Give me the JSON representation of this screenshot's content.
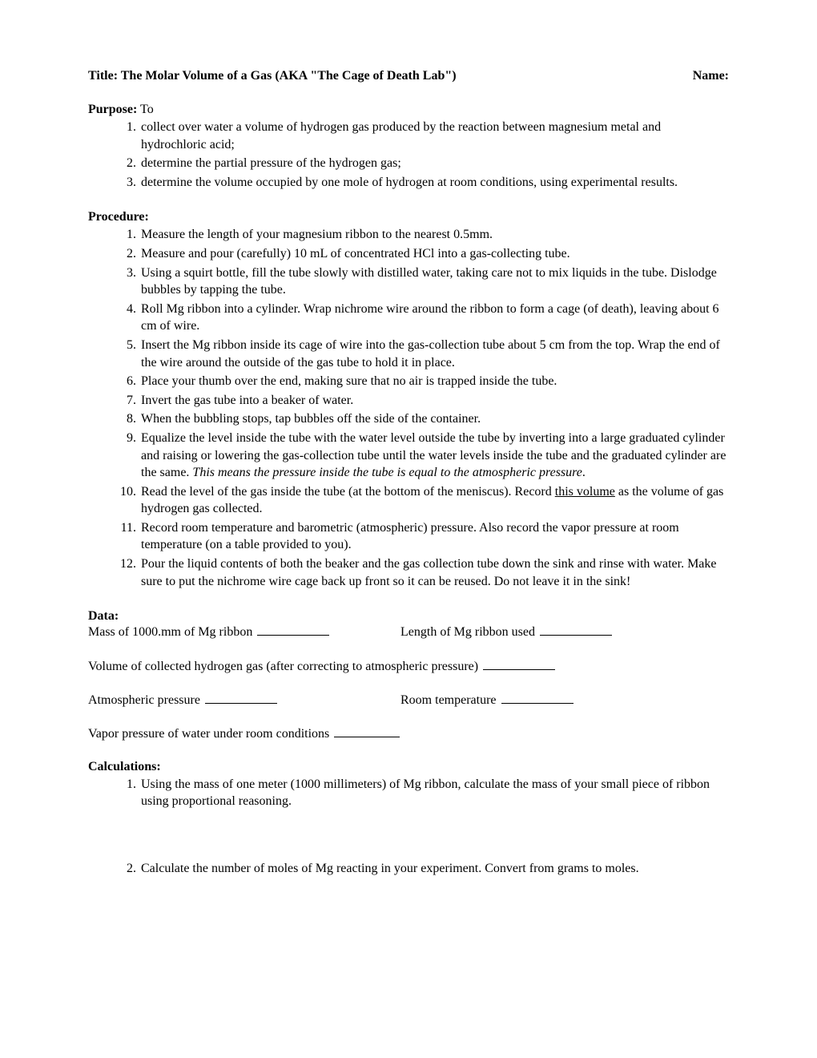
{
  "title": "Title: The Molar Volume of a Gas (AKA \"The Cage of Death Lab\")",
  "name_label": "Name:",
  "purpose": {
    "heading": "Purpose:",
    "lead": " To",
    "items": [
      "collect over water a volume of hydrogen gas produced by the reaction between magnesium metal and hydrochloric acid;",
      "determine the partial pressure of the hydrogen gas;",
      "determine the volume occupied by one mole of hydrogen at room conditions, using experimental results."
    ]
  },
  "procedure": {
    "heading": "Procedure:",
    "items": [
      {
        "text": "Measure the length of your magnesium ribbon to the nearest 0.5mm."
      },
      {
        "text": "Measure and pour (carefully) 10 mL of concentrated HCl into a gas-collecting tube."
      },
      {
        "text": "Using a squirt bottle, fill the tube slowly with distilled water, taking care not to mix liquids in the tube. Dislodge bubbles by tapping the tube."
      },
      {
        "text": "Roll Mg ribbon into a cylinder. Wrap nichrome wire around the ribbon to form a cage (of death), leaving about 6 cm of wire."
      },
      {
        "text": "Insert the Mg ribbon inside its cage of wire into the gas-collection tube about 5 cm from the top. Wrap the end of the wire around the outside of the gas tube to hold it in place."
      },
      {
        "text": "Place your thumb over the end, making sure that no air is trapped inside the tube."
      },
      {
        "text": "Invert the gas tube into a beaker of water."
      },
      {
        "text": "When the bubbling stops, tap bubbles off the side of the container."
      },
      {
        "pre": "Equalize the level inside the tube with the water level outside the tube by inverting into a large graduated cylinder and raising or lowering the gas-collection tube until the water levels inside the tube and the graduated cylinder are the same. ",
        "italic": "This means the pressure inside the tube is equal to the atmospheric pressure",
        "post": "."
      },
      {
        "pre": "Read the level of the gas inside the tube (at the bottom of the meniscus). Record ",
        "underline": "this volume",
        "post": " as the volume of gas hydrogen gas collected."
      },
      {
        "text": " Record room temperature and barometric (atmospheric) pressure. Also record the vapor pressure at room temperature (on a table provided to you)."
      },
      {
        "text": "Pour the liquid contents of both the beaker and the gas collection tube down the sink and rinse with water. Make sure to put the nichrome wire cage back up front so it can be reused. Do not leave it in the sink!"
      }
    ]
  },
  "data": {
    "heading": "Data:",
    "row1_left": "Mass of 1000.mm of Mg ribbon ",
    "row1_right": "Length of Mg ribbon used ",
    "row2": "Volume of collected hydrogen gas (after correcting to atmospheric pressure) ",
    "row3_left": "Atmospheric pressure ",
    "row3_right": "Room temperature ",
    "row4": "Vapor pressure of water under room conditions "
  },
  "calculations": {
    "heading": "Calculations:",
    "items": [
      "Using the mass of one meter (1000 millimeters) of Mg ribbon, calculate the mass of your small piece of ribbon using proportional reasoning.",
      "Calculate the number of moles of Mg reacting in your experiment. Convert from grams to moles."
    ]
  }
}
